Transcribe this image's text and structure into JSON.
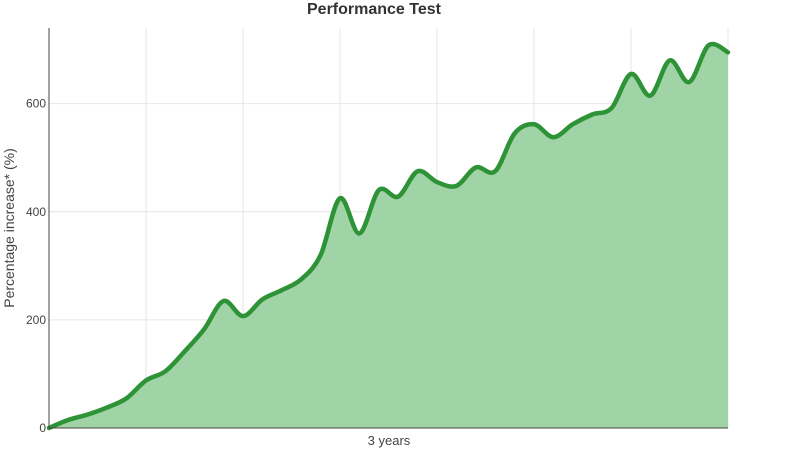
{
  "chart_data": {
    "type": "area",
    "title": "Performance Test",
    "xlabel": "3 years",
    "ylabel": "Percentage increase*  (%)",
    "ylim": [
      0,
      740
    ],
    "yticks": [
      0,
      200,
      400,
      600
    ],
    "yticklabels": [
      "0",
      "200",
      "400",
      "600"
    ],
    "grid": true,
    "x_range": [
      0,
      35
    ],
    "series": [
      {
        "x": [
          0,
          1,
          2,
          3,
          4,
          5,
          6,
          7,
          8,
          9,
          10,
          11,
          12,
          13,
          14,
          15,
          16,
          17,
          18,
          19,
          20,
          21,
          22,
          23,
          24,
          25,
          26,
          27,
          28,
          29,
          30,
          31,
          32,
          33,
          34,
          35
        ],
        "values": [
          0,
          15,
          25,
          38,
          55,
          88,
          105,
          142,
          183,
          235,
          207,
          238,
          255,
          275,
          320,
          425,
          360,
          440,
          428,
          475,
          455,
          448,
          482,
          475,
          545,
          562,
          538,
          562,
          580,
          592,
          655,
          615,
          680,
          640,
          708,
          695
        ]
      }
    ],
    "colors": {
      "line": "#2e9236",
      "fill": "#a0d3a5"
    }
  }
}
